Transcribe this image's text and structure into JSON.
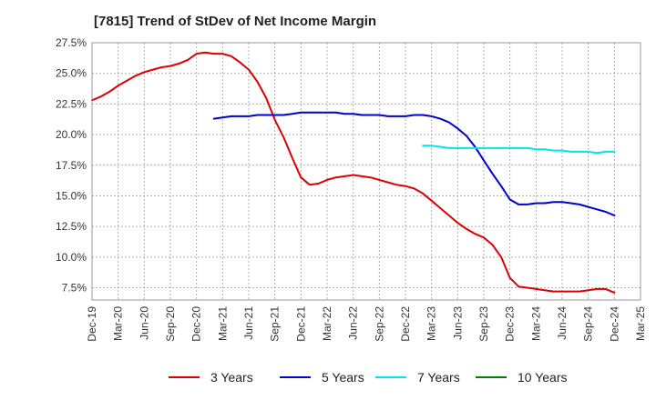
{
  "title": "[7815]  Trend of StDev of Net Income Margin",
  "chart_data": {
    "type": "line",
    "title": "[7815]  Trend of StDev of Net Income Margin",
    "x_ticks": [
      "Dec-19",
      "Mar-20",
      "Jun-20",
      "Sep-20",
      "Dec-20",
      "Mar-21",
      "Jun-21",
      "Sep-21",
      "Dec-21",
      "Mar-22",
      "Jun-22",
      "Sep-22",
      "Dec-22",
      "Mar-23",
      "Jun-23",
      "Sep-23",
      "Dec-23",
      "Mar-24",
      "Jun-24",
      "Sep-24",
      "Dec-24",
      "Mar-25"
    ],
    "y_ticks": [
      "7.5%",
      "10.0%",
      "12.5%",
      "15.0%",
      "17.5%",
      "20.0%",
      "22.5%",
      "25.0%",
      "27.5%"
    ],
    "ylim": [
      6.5,
      27.5
    ],
    "grid": true,
    "legend_position": "bottom",
    "series": [
      {
        "name": "3 Years",
        "color": "#dd0000",
        "points": [
          [
            "Dec-19",
            22.8
          ],
          [
            "Jan-20",
            23.1
          ],
          [
            "Feb-20",
            23.5
          ],
          [
            "Mar-20",
            24.0
          ],
          [
            "Apr-20",
            24.4
          ],
          [
            "May-20",
            24.8
          ],
          [
            "Jun-20",
            25.1
          ],
          [
            "Jul-20",
            25.3
          ],
          [
            "Aug-20",
            25.5
          ],
          [
            "Sep-20",
            25.6
          ],
          [
            "Oct-20",
            25.8
          ],
          [
            "Nov-20",
            26.1
          ],
          [
            "Dec-20",
            26.6
          ],
          [
            "Jan-21",
            26.7
          ],
          [
            "Feb-21",
            26.6
          ],
          [
            "Mar-21",
            26.6
          ],
          [
            "Apr-21",
            26.4
          ],
          [
            "May-21",
            25.9
          ],
          [
            "Jun-21",
            25.3
          ],
          [
            "Jul-21",
            24.3
          ],
          [
            "Aug-21",
            23.0
          ],
          [
            "Sep-21",
            21.2
          ],
          [
            "Oct-21",
            19.8
          ],
          [
            "Nov-21",
            18.1
          ],
          [
            "Dec-21",
            16.5
          ],
          [
            "Jan-22",
            15.9
          ],
          [
            "Feb-22",
            16.0
          ],
          [
            "Mar-22",
            16.3
          ],
          [
            "Apr-22",
            16.5
          ],
          [
            "May-22",
            16.6
          ],
          [
            "Jun-22",
            16.7
          ],
          [
            "Jul-22",
            16.6
          ],
          [
            "Aug-22",
            16.5
          ],
          [
            "Sep-22",
            16.3
          ],
          [
            "Oct-22",
            16.1
          ],
          [
            "Nov-22",
            15.9
          ],
          [
            "Dec-22",
            15.8
          ],
          [
            "Jan-23",
            15.6
          ],
          [
            "Feb-23",
            15.2
          ],
          [
            "Mar-23",
            14.6
          ],
          [
            "Apr-23",
            14.0
          ],
          [
            "May-23",
            13.4
          ],
          [
            "Jun-23",
            12.8
          ],
          [
            "Jul-23",
            12.3
          ],
          [
            "Aug-23",
            11.9
          ],
          [
            "Sep-23",
            11.6
          ],
          [
            "Oct-23",
            11.0
          ],
          [
            "Nov-23",
            10.0
          ],
          [
            "Dec-23",
            8.3
          ],
          [
            "Jan-24",
            7.6
          ],
          [
            "Feb-24",
            7.5
          ],
          [
            "Mar-24",
            7.4
          ],
          [
            "Apr-24",
            7.3
          ],
          [
            "May-24",
            7.2
          ],
          [
            "Jun-24",
            7.2
          ],
          [
            "Jul-24",
            7.2
          ],
          [
            "Aug-24",
            7.2
          ],
          [
            "Sep-24",
            7.3
          ],
          [
            "Oct-24",
            7.4
          ],
          [
            "Nov-24",
            7.4
          ],
          [
            "Dec-24",
            7.1
          ]
        ]
      },
      {
        "name": "5 Years",
        "color": "#0000cc",
        "points": [
          [
            "Feb-21",
            21.3
          ],
          [
            "Mar-21",
            21.4
          ],
          [
            "Apr-21",
            21.5
          ],
          [
            "May-21",
            21.5
          ],
          [
            "Jun-21",
            21.5
          ],
          [
            "Jul-21",
            21.6
          ],
          [
            "Aug-21",
            21.6
          ],
          [
            "Sep-21",
            21.6
          ],
          [
            "Oct-21",
            21.6
          ],
          [
            "Nov-21",
            21.7
          ],
          [
            "Dec-21",
            21.8
          ],
          [
            "Jan-22",
            21.8
          ],
          [
            "Feb-22",
            21.8
          ],
          [
            "Mar-22",
            21.8
          ],
          [
            "Apr-22",
            21.8
          ],
          [
            "May-22",
            21.7
          ],
          [
            "Jun-22",
            21.7
          ],
          [
            "Jul-22",
            21.6
          ],
          [
            "Aug-22",
            21.6
          ],
          [
            "Sep-22",
            21.6
          ],
          [
            "Oct-22",
            21.5
          ],
          [
            "Nov-22",
            21.5
          ],
          [
            "Dec-22",
            21.5
          ],
          [
            "Jan-23",
            21.6
          ],
          [
            "Feb-23",
            21.6
          ],
          [
            "Mar-23",
            21.5
          ],
          [
            "Apr-23",
            21.3
          ],
          [
            "May-23",
            21.0
          ],
          [
            "Jun-23",
            20.5
          ],
          [
            "Jul-23",
            19.9
          ],
          [
            "Aug-23",
            19.0
          ],
          [
            "Sep-23",
            17.9
          ],
          [
            "Oct-23",
            16.8
          ],
          [
            "Nov-23",
            15.8
          ],
          [
            "Dec-23",
            14.7
          ],
          [
            "Jan-24",
            14.3
          ],
          [
            "Feb-24",
            14.3
          ],
          [
            "Mar-24",
            14.4
          ],
          [
            "Apr-24",
            14.4
          ],
          [
            "May-24",
            14.5
          ],
          [
            "Jun-24",
            14.5
          ],
          [
            "Jul-24",
            14.4
          ],
          [
            "Aug-24",
            14.3
          ],
          [
            "Sep-24",
            14.1
          ],
          [
            "Oct-24",
            13.9
          ],
          [
            "Nov-24",
            13.7
          ],
          [
            "Dec-24",
            13.4
          ]
        ]
      },
      {
        "name": "7 Years",
        "color": "#00e5e5",
        "points": [
          [
            "Feb-23",
            19.1
          ],
          [
            "Mar-23",
            19.1
          ],
          [
            "Apr-23",
            19.0
          ],
          [
            "May-23",
            18.9
          ],
          [
            "Jun-23",
            18.9
          ],
          [
            "Jul-23",
            18.9
          ],
          [
            "Aug-23",
            18.9
          ],
          [
            "Sep-23",
            18.9
          ],
          [
            "Oct-23",
            18.9
          ],
          [
            "Nov-23",
            18.9
          ],
          [
            "Dec-23",
            18.9
          ],
          [
            "Jan-24",
            18.9
          ],
          [
            "Feb-24",
            18.9
          ],
          [
            "Mar-24",
            18.8
          ],
          [
            "Apr-24",
            18.8
          ],
          [
            "May-24",
            18.7
          ],
          [
            "Jun-24",
            18.7
          ],
          [
            "Jul-24",
            18.6
          ],
          [
            "Aug-24",
            18.6
          ],
          [
            "Sep-24",
            18.6
          ],
          [
            "Oct-24",
            18.5
          ],
          [
            "Nov-24",
            18.6
          ],
          [
            "Dec-24",
            18.6
          ]
        ]
      },
      {
        "name": "10 Years",
        "color": "#008000",
        "points": []
      }
    ]
  }
}
